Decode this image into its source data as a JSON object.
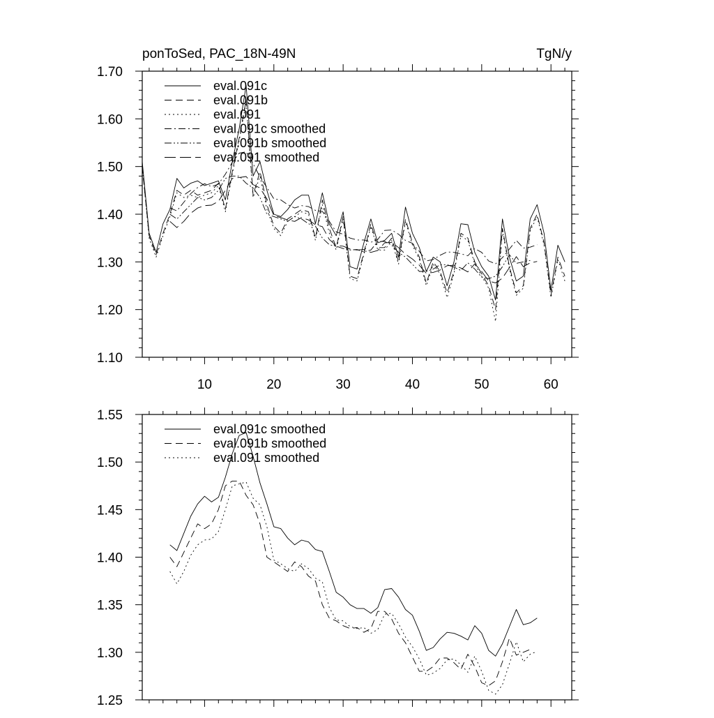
{
  "figure": {
    "title_left": "ponToSed, PAC_18N-49N",
    "title_right": "TgN/y"
  },
  "chart_data": [
    {
      "type": "line",
      "panel": "top",
      "xlim": [
        1,
        63
      ],
      "ylim": [
        1.1,
        1.7
      ],
      "xticks": [
        10,
        20,
        30,
        40,
        50,
        60
      ],
      "xtick_labels": [
        "10",
        "20",
        "30",
        "40",
        "50",
        "60"
      ],
      "yticks": [
        1.1,
        1.2,
        1.3,
        1.4,
        1.5,
        1.6,
        1.7
      ],
      "ytick_labels": [
        "1.10",
        "1.20",
        "1.30",
        "1.40",
        "1.50",
        "1.60",
        "1.70"
      ],
      "legend_position": "top-left",
      "series": [
        {
          "name": "eval.091c",
          "dash": "solid",
          "x_start": 1,
          "values": [
            1.51,
            1.36,
            1.32,
            1.38,
            1.41,
            1.475,
            1.455,
            1.465,
            1.47,
            1.46,
            1.465,
            1.47,
            1.43,
            1.51,
            1.58,
            1.67,
            1.48,
            1.51,
            1.45,
            1.4,
            1.395,
            1.41,
            1.43,
            1.44,
            1.44,
            1.38,
            1.445,
            1.38,
            1.355,
            1.405,
            1.29,
            1.285,
            1.34,
            1.39,
            1.34,
            1.345,
            1.36,
            1.31,
            1.415,
            1.36,
            1.33,
            1.28,
            1.31,
            1.3,
            1.25,
            1.3,
            1.38,
            1.378,
            1.32,
            1.29,
            1.27,
            1.22,
            1.39,
            1.31,
            1.26,
            1.27,
            1.39,
            1.42,
            1.36,
            1.24,
            1.335,
            1.3
          ]
        },
        {
          "name": "eval.091b",
          "dash": "dash",
          "x_start": 1,
          "values": [
            1.5,
            1.355,
            1.315,
            1.36,
            1.4,
            1.45,
            1.44,
            1.45,
            1.44,
            1.445,
            1.45,
            1.465,
            1.41,
            1.49,
            1.56,
            1.64,
            1.44,
            1.49,
            1.42,
            1.375,
            1.36,
            1.39,
            1.4,
            1.41,
            1.405,
            1.35,
            1.43,
            1.37,
            1.33,
            1.395,
            1.27,
            1.265,
            1.32,
            1.38,
            1.33,
            1.33,
            1.35,
            1.3,
            1.39,
            1.34,
            1.31,
            1.255,
            1.3,
            1.28,
            1.235,
            1.28,
            1.36,
            1.35,
            1.3,
            1.275,
            1.25,
            1.2,
            1.37,
            1.29,
            1.235,
            1.25,
            1.37,
            1.4,
            1.34,
            1.23,
            1.31,
            1.27
          ]
        },
        {
          "name": "eval.091",
          "dash": "dot",
          "x_start": 1,
          "values": [
            1.5,
            1.35,
            1.31,
            1.355,
            1.395,
            1.445,
            1.435,
            1.44,
            1.435,
            1.44,
            1.445,
            1.46,
            1.405,
            1.485,
            1.555,
            1.635,
            1.435,
            1.48,
            1.41,
            1.37,
            1.355,
            1.385,
            1.395,
            1.405,
            1.4,
            1.345,
            1.42,
            1.36,
            1.325,
            1.39,
            1.265,
            1.26,
            1.315,
            1.375,
            1.325,
            1.325,
            1.345,
            1.295,
            1.385,
            1.335,
            1.305,
            1.25,
            1.295,
            1.275,
            1.225,
            1.275,
            1.355,
            1.345,
            1.295,
            1.27,
            1.245,
            1.175,
            1.365,
            1.285,
            1.23,
            1.245,
            1.365,
            1.395,
            1.335,
            1.225,
            1.305,
            1.26
          ]
        },
        {
          "name": "eval.091c smoothed",
          "dash": "dashdot",
          "x_start": 5,
          "values": [
            1.413,
            1.407,
            1.425,
            1.443,
            1.456,
            1.464,
            1.458,
            1.463,
            1.484,
            1.509,
            1.528,
            1.531,
            1.506,
            1.478,
            1.456,
            1.432,
            1.43,
            1.42,
            1.413,
            1.418,
            1.416,
            1.408,
            1.406,
            1.385,
            1.363,
            1.358,
            1.35,
            1.346,
            1.346,
            1.341,
            1.347,
            1.366,
            1.367,
            1.358,
            1.345,
            1.339,
            1.322,
            1.302,
            1.305,
            1.314,
            1.321,
            1.32,
            1.317,
            1.313,
            1.328,
            1.32,
            1.302,
            1.296,
            1.309,
            1.327,
            1.345,
            1.329,
            1.331,
            1.336
          ]
        },
        {
          "name": "eval.091b smoothed",
          "dash": "dashdotdot",
          "x_start": 5,
          "values": [
            1.4,
            1.39,
            1.405,
            1.42,
            1.435,
            1.43,
            1.435,
            1.45,
            1.475,
            1.48,
            1.48,
            1.465,
            1.455,
            1.435,
            1.4,
            1.395,
            1.39,
            1.385,
            1.395,
            1.39,
            1.38,
            1.375,
            1.35,
            1.336,
            1.333,
            1.328,
            1.325,
            1.326,
            1.321,
            1.325,
            1.343,
            1.343,
            1.335,
            1.32,
            1.31,
            1.295,
            1.28,
            1.28,
            1.285,
            1.294,
            1.294,
            1.289,
            1.282,
            1.298,
            1.285,
            1.268,
            1.265,
            1.27,
            1.29,
            1.315,
            1.297,
            1.3,
            1.303
          ]
        },
        {
          "name": "eval.091 smoothed",
          "dash": "longdash",
          "x_start": 5,
          "values": [
            1.385,
            1.372,
            1.385,
            1.402,
            1.413,
            1.418,
            1.419,
            1.427,
            1.45,
            1.475,
            1.477,
            1.479,
            1.462,
            1.455,
            1.432,
            1.397,
            1.393,
            1.388,
            1.385,
            1.393,
            1.388,
            1.378,
            1.374,
            1.347,
            1.334,
            1.333,
            1.327,
            1.325,
            1.326,
            1.32,
            1.324,
            1.34,
            1.341,
            1.33,
            1.316,
            1.306,
            1.293,
            1.276,
            1.278,
            1.283,
            1.292,
            1.293,
            1.287,
            1.279,
            1.296,
            1.28,
            1.26,
            1.256,
            1.266,
            1.288,
            1.311,
            1.29,
            1.298,
            1.301
          ]
        }
      ]
    },
    {
      "type": "line",
      "panel": "bottom",
      "xlim": [
        1,
        63
      ],
      "ylim": [
        1.25,
        1.55
      ],
      "xticks": [
        10,
        20,
        30,
        40,
        50,
        60
      ],
      "yticks": [
        1.25,
        1.3,
        1.35,
        1.4,
        1.45,
        1.5,
        1.55
      ],
      "ytick_labels": [
        "1.25",
        "1.30",
        "1.35",
        "1.40",
        "1.45",
        "1.50",
        "1.55"
      ],
      "legend_position": "top-left",
      "series": [
        {
          "name": "eval.091c smoothed",
          "dash": "solid",
          "x_start": 5,
          "values": [
            1.413,
            1.407,
            1.425,
            1.443,
            1.456,
            1.464,
            1.458,
            1.463,
            1.484,
            1.509,
            1.528,
            1.531,
            1.506,
            1.478,
            1.456,
            1.432,
            1.43,
            1.42,
            1.413,
            1.418,
            1.416,
            1.408,
            1.406,
            1.385,
            1.363,
            1.358,
            1.35,
            1.346,
            1.346,
            1.341,
            1.347,
            1.366,
            1.367,
            1.358,
            1.345,
            1.339,
            1.322,
            1.302,
            1.305,
            1.314,
            1.321,
            1.32,
            1.317,
            1.313,
            1.328,
            1.32,
            1.302,
            1.296,
            1.309,
            1.327,
            1.345,
            1.329,
            1.331,
            1.336
          ]
        },
        {
          "name": "eval.091b smoothed",
          "dash": "dash",
          "x_start": 5,
          "values": [
            1.4,
            1.39,
            1.405,
            1.42,
            1.435,
            1.43,
            1.435,
            1.45,
            1.475,
            1.48,
            1.48,
            1.465,
            1.455,
            1.435,
            1.4,
            1.395,
            1.39,
            1.385,
            1.395,
            1.39,
            1.38,
            1.375,
            1.35,
            1.336,
            1.333,
            1.328,
            1.325,
            1.326,
            1.321,
            1.325,
            1.343,
            1.343,
            1.335,
            1.32,
            1.31,
            1.295,
            1.28,
            1.28,
            1.285,
            1.294,
            1.294,
            1.289,
            1.282,
            1.298,
            1.285,
            1.268,
            1.265,
            1.27,
            1.29,
            1.315,
            1.297,
            1.3,
            1.303
          ]
        },
        {
          "name": "eval.091 smoothed",
          "dash": "dot",
          "x_start": 5,
          "values": [
            1.385,
            1.372,
            1.385,
            1.402,
            1.413,
            1.418,
            1.419,
            1.427,
            1.45,
            1.475,
            1.477,
            1.479,
            1.462,
            1.455,
            1.432,
            1.397,
            1.393,
            1.388,
            1.385,
            1.393,
            1.388,
            1.378,
            1.374,
            1.347,
            1.334,
            1.333,
            1.327,
            1.325,
            1.326,
            1.32,
            1.324,
            1.34,
            1.341,
            1.33,
            1.316,
            1.306,
            1.293,
            1.276,
            1.278,
            1.283,
            1.292,
            1.293,
            1.287,
            1.279,
            1.296,
            1.28,
            1.26,
            1.256,
            1.266,
            1.288,
            1.311,
            1.29,
            1.298,
            1.301
          ]
        }
      ]
    }
  ]
}
